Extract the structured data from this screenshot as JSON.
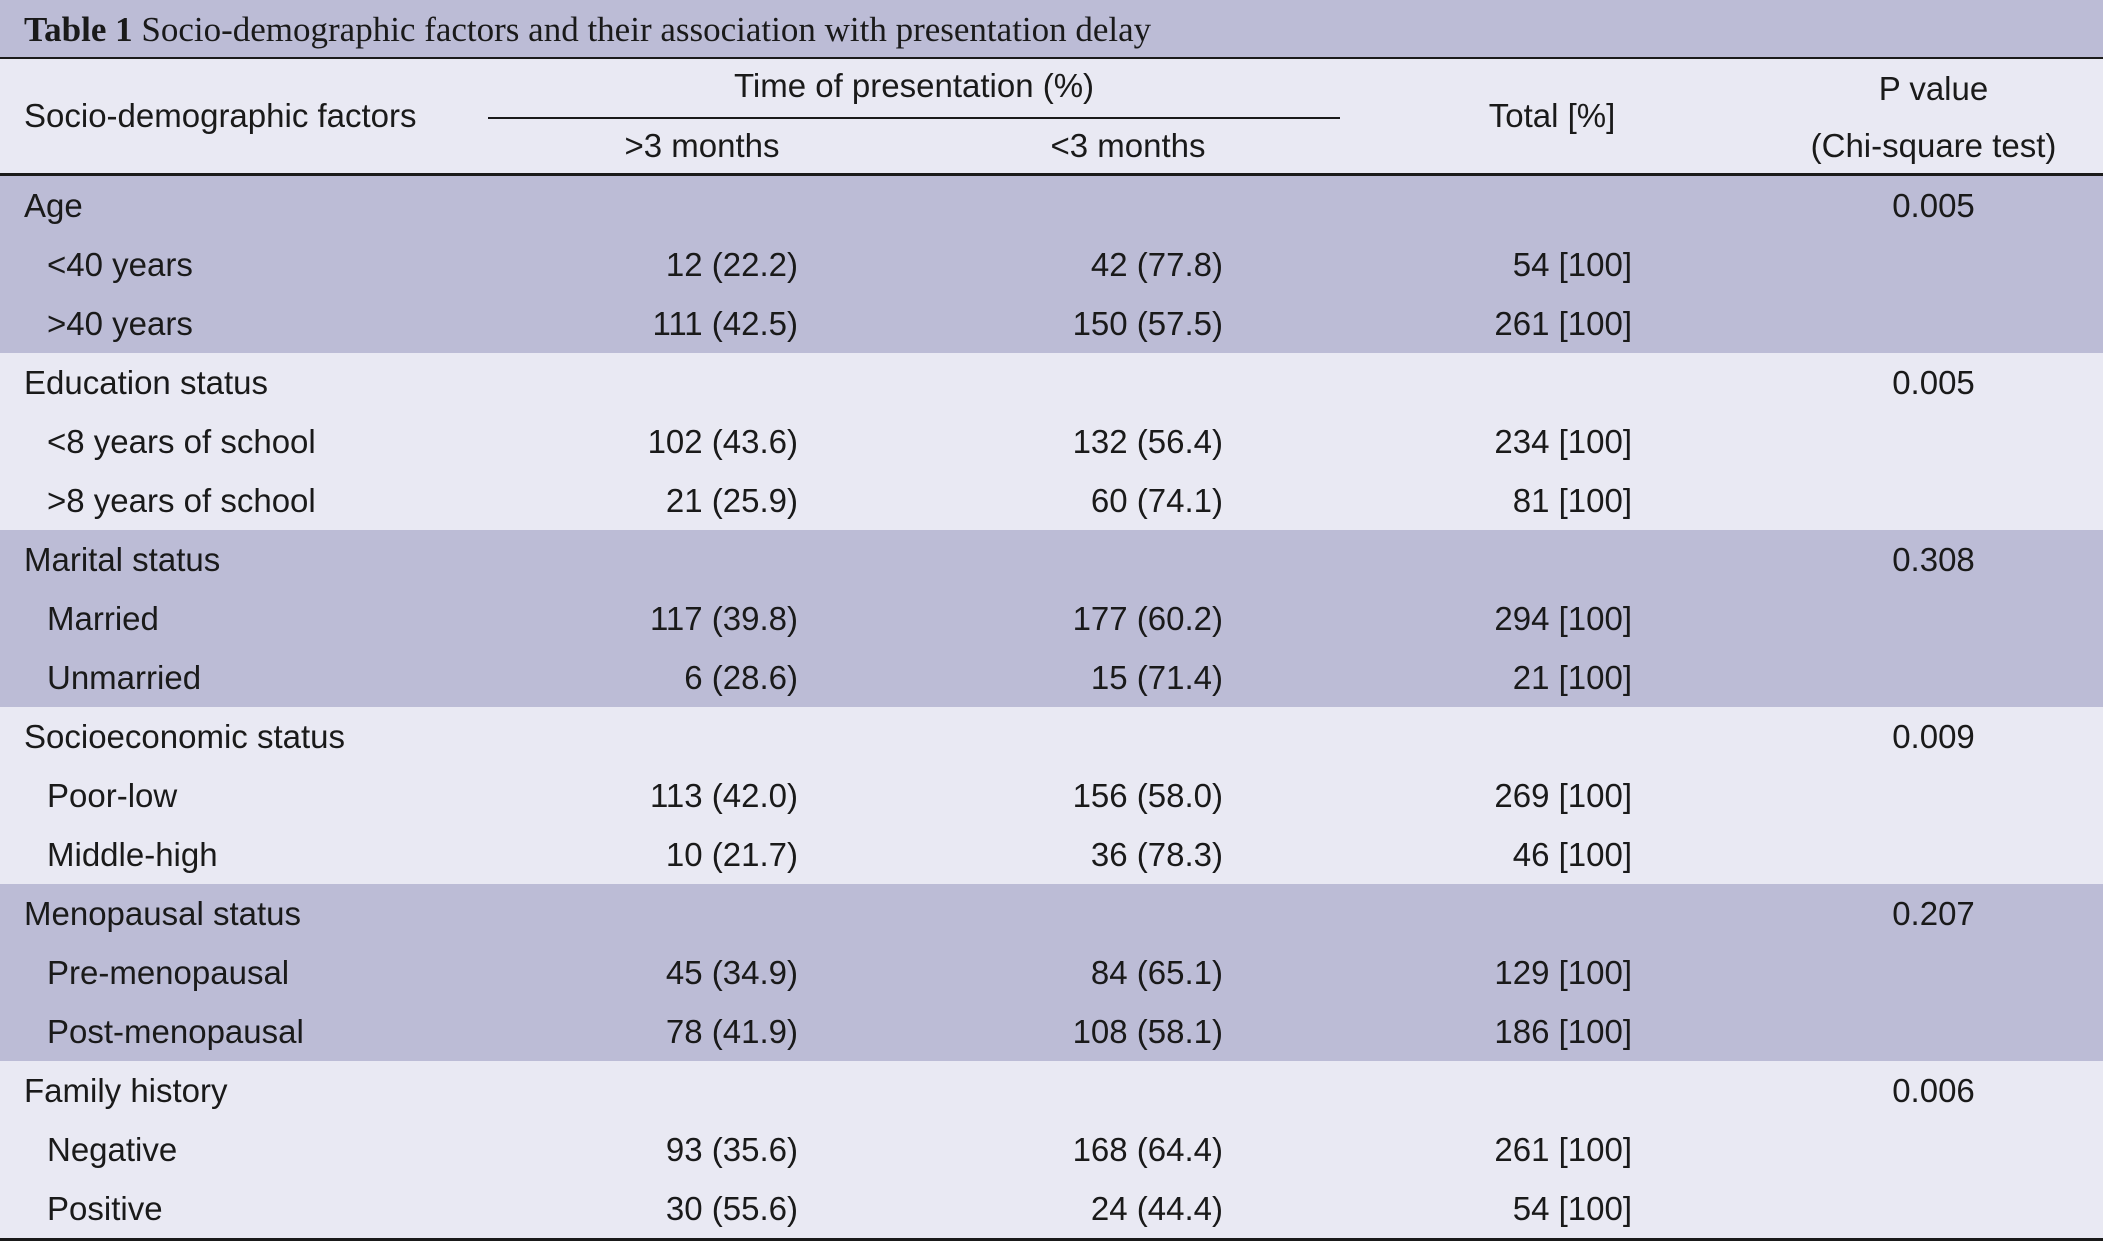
{
  "caption": {
    "label": "Table 1",
    "text": " Socio-demographic factors and their association with presentation delay"
  },
  "header": {
    "factors": "Socio-demographic factors",
    "time_group": "Time of presentation (%)",
    "gt3": ">3 months",
    "lt3": "<3 months",
    "total": "Total [%]",
    "pvalue": "P value",
    "pvalue_sub": "(Chi-square test)"
  },
  "groups": [
    {
      "name": "Age",
      "p": "0.005",
      "rows": [
        {
          "label": "<40 years",
          "gt3": "12 (22.2)",
          "lt3": "42 (77.8)",
          "total": "54 [100]"
        },
        {
          "label": ">40 years",
          "gt3": "111 (42.5)",
          "lt3": "150 (57.5)",
          "total": "261 [100]"
        }
      ]
    },
    {
      "name": "Education status",
      "p": "0.005",
      "rows": [
        {
          "label": "<8 years of school",
          "gt3": "102 (43.6)",
          "lt3": "132 (56.4)",
          "total": "234 [100]"
        },
        {
          "label": ">8 years of school",
          "gt3": "21 (25.9)",
          "lt3": "60 (74.1)",
          "total": "81 [100]"
        }
      ]
    },
    {
      "name": "Marital status",
      "p": "0.308",
      "rows": [
        {
          "label": "Married",
          "gt3": "117 (39.8)",
          "lt3": "177 (60.2)",
          "total": "294 [100]"
        },
        {
          "label": "Unmarried",
          "gt3": "6 (28.6)",
          "lt3": "15 (71.4)",
          "total": "21 [100]"
        }
      ]
    },
    {
      "name": "Socioeconomic status",
      "p": "0.009",
      "rows": [
        {
          "label": "Poor-low",
          "gt3": "113 (42.0)",
          "lt3": "156 (58.0)",
          "total": "269 [100]"
        },
        {
          "label": "Middle-high",
          "gt3": "10 (21.7)",
          "lt3": "36 (78.3)",
          "total": "46 [100]"
        }
      ]
    },
    {
      "name": "Menopausal status",
      "p": "0.207",
      "rows": [
        {
          "label": "Pre-menopausal",
          "gt3": "45 (34.9)",
          "lt3": "84 (65.1)",
          "total": "129 [100]"
        },
        {
          "label": "Post-menopausal",
          "gt3": "78 (41.9)",
          "lt3": "108 (58.1)",
          "total": "186 [100]"
        }
      ]
    },
    {
      "name": "Family history",
      "p": "0.006",
      "rows": [
        {
          "label": "Negative",
          "gt3": "93 (35.6)",
          "lt3": "168 (64.4)",
          "total": "261 [100]"
        },
        {
          "label": "Positive",
          "gt3": "30 (55.6)",
          "lt3": "24 (44.4)",
          "total": "54 [100]"
        }
      ]
    }
  ],
  "colors": {
    "band_dark": "#bcbcd6",
    "band_light": "#e9e9f3",
    "rule": "#1a1a1a"
  }
}
